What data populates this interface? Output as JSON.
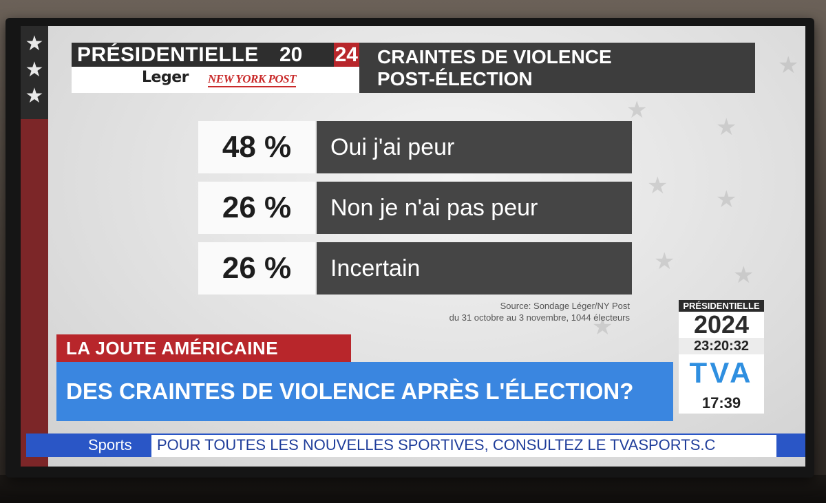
{
  "header": {
    "brand_word": "PRÉSIDENTIELLE",
    "brand_year_a": "20",
    "brand_year_b": "24",
    "logo_leger": "Leger",
    "logo_nypost": "NEW YORK POST",
    "title_line1": "CRAINTES DE VIOLENCE",
    "title_line2": "POST-ÉLECTION"
  },
  "results": [
    {
      "pct": "48 %",
      "label": "Oui j'ai peur"
    },
    {
      "pct": "26 %",
      "label": "Non je n'ai pas peur"
    },
    {
      "pct": "26 %",
      "label": "Incertain"
    }
  ],
  "source": {
    "line1": "Source: Sondage Léger/NY Post",
    "line2": "du 31 octobre au 3 novembre, 1044 électeurs"
  },
  "corner": {
    "title": "PRÉSIDENTIELLE",
    "year": "2024",
    "timer": "23:20:32",
    "channel": "TVA",
    "clock": "17:39"
  },
  "segment": "LA JOUTE AMÉRICAINE",
  "headline": "DES CRAINTES DE VIOLENCE APRÈS L'ÉLECTION?",
  "ticker": {
    "label": "Sports",
    "text": "POUR TOUTES LES NOUVELLES SPORTIVES, CONSULTEZ LE TVASPORTS.C"
  },
  "colors": {
    "accent_red": "#b8262b",
    "accent_blue": "#3a86e0",
    "panel_dark": "#454545"
  }
}
